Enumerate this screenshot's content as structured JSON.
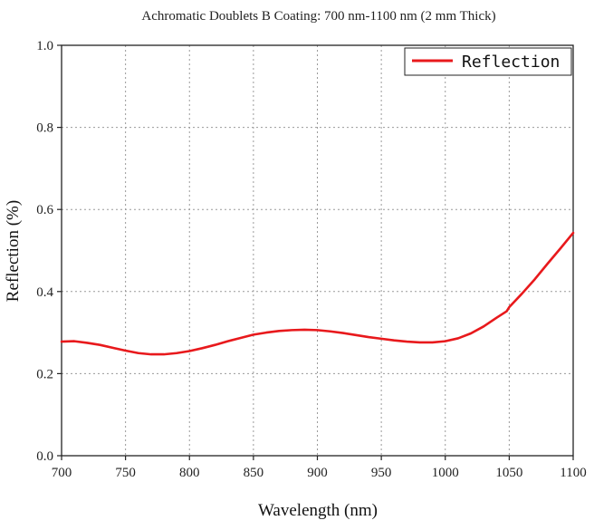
{
  "chart_data": {
    "type": "line",
    "title": "Achromatic Doublets B Coating: 700 nm-1100 nm (2 mm Thick)",
    "xlabel": "Wavelength (nm)",
    "ylabel": "Reflection (%)",
    "xlim": [
      700,
      1100
    ],
    "ylim": [
      0.0,
      1.0
    ],
    "x_ticks": [
      700,
      750,
      800,
      850,
      900,
      950,
      1000,
      1050,
      1100
    ],
    "y_ticks": [
      0.0,
      0.2,
      0.4,
      0.6,
      0.8,
      1.0
    ],
    "x_tick_labels": [
      "700",
      "750",
      "800",
      "850",
      "900",
      "950",
      "1000",
      "1050",
      "1100"
    ],
    "y_tick_labels": [
      "0.0",
      "0.2",
      "0.4",
      "0.6",
      "0.8",
      "1.0"
    ],
    "grid": true,
    "legend_position": "top-right",
    "series": [
      {
        "name": "Reflection",
        "color": "#e8191c",
        "x": [
          700,
          710,
          720,
          730,
          740,
          750,
          760,
          770,
          780,
          790,
          800,
          810,
          820,
          830,
          840,
          850,
          860,
          870,
          880,
          890,
          900,
          910,
          920,
          930,
          940,
          950,
          960,
          970,
          980,
          990,
          1000,
          1010,
          1020,
          1030,
          1040,
          1048,
          1050,
          1060,
          1070,
          1080,
          1090,
          1100
        ],
        "y": [
          0.278,
          0.279,
          0.275,
          0.27,
          0.263,
          0.256,
          0.25,
          0.247,
          0.247,
          0.25,
          0.255,
          0.262,
          0.27,
          0.279,
          0.287,
          0.295,
          0.3,
          0.304,
          0.306,
          0.307,
          0.306,
          0.303,
          0.299,
          0.294,
          0.289,
          0.285,
          0.281,
          0.278,
          0.276,
          0.276,
          0.279,
          0.286,
          0.298,
          0.315,
          0.336,
          0.352,
          0.362,
          0.395,
          0.43,
          0.468,
          0.505,
          0.543
        ]
      }
    ]
  }
}
